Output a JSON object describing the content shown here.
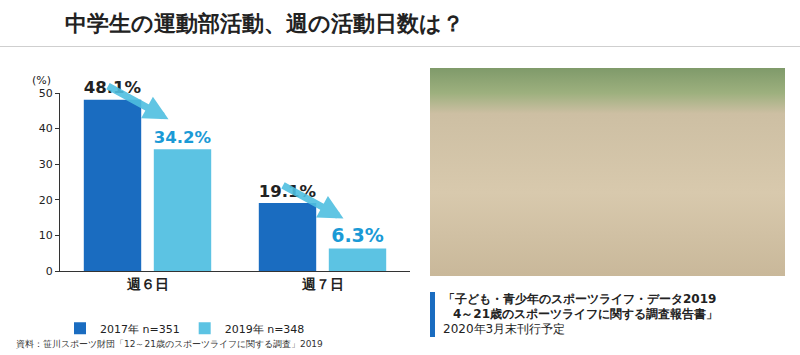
{
  "chart_data": {
    "type": "bar",
    "title": "中学生の運動部活動、週の活動日数は？",
    "ylabel": "(%)",
    "categories": [
      "週６日",
      "週７日"
    ],
    "series": [
      {
        "name": "2017年 n=351",
        "color": "#1a6cc0",
        "values": [
          48.1,
          19.1
        ],
        "value_labels": [
          "48.1%",
          "19.1%"
        ]
      },
      {
        "name": "2019年 n=348",
        "color": "#5cc3e3",
        "values": [
          34.2,
          6.3
        ],
        "value_labels": [
          "34.2%",
          "6.3%"
        ]
      }
    ],
    "ylim": [
      0,
      50
    ],
    "yticks": [
      0,
      10,
      20,
      30,
      40,
      50
    ],
    "grid": false,
    "data_labels": true,
    "legend": "bottom left",
    "source": "資料：笹川スポーツ財団「12～21歳のスポーツライフに関する調査」2019",
    "caption": [
      "「子ども・青少年のスポーツライフ・データ2019",
      "4～21歳のスポーツライフに関する調査報告書」",
      "2020年3月末刊行予定"
    ]
  }
}
